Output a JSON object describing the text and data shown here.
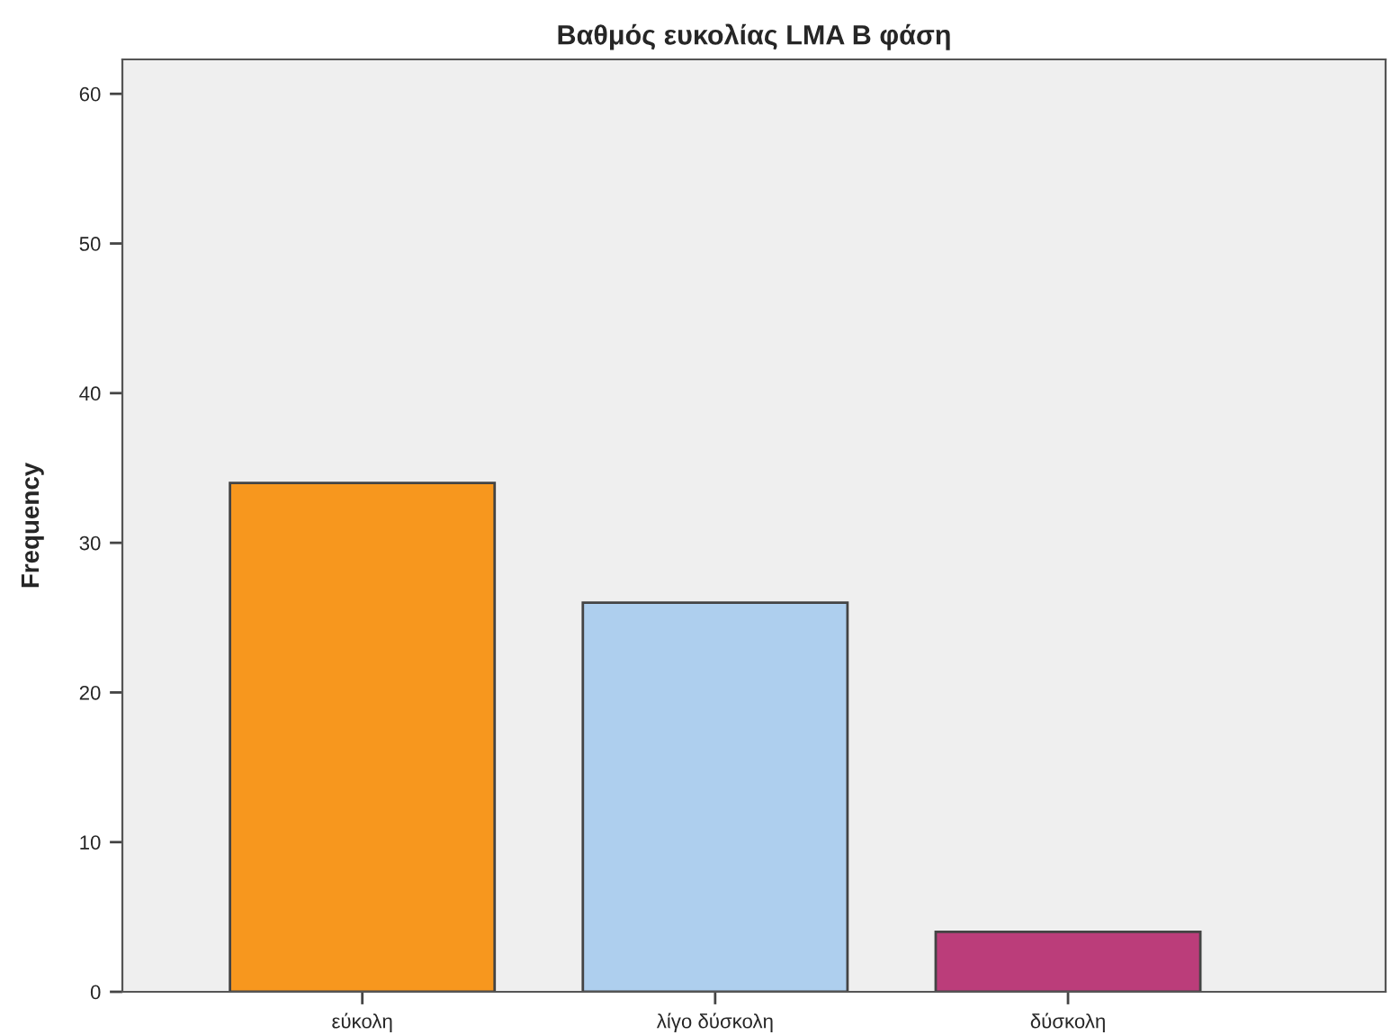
{
  "chart_data": {
    "type": "bar",
    "title": "Βαθμός ευκολίας LMA B φάση",
    "ylabel": "Frequency",
    "categories": [
      "εύκολη",
      "λίγο δύσκολη",
      "δύσκολη"
    ],
    "values": [
      34,
      26,
      4
    ],
    "colors": [
      "#f7971e",
      "#aecfee",
      "#bb3d7a"
    ],
    "ylim": [
      0,
      62.3
    ],
    "yticks": [
      0,
      10,
      20,
      30,
      40,
      50,
      60
    ],
    "grid": false
  }
}
